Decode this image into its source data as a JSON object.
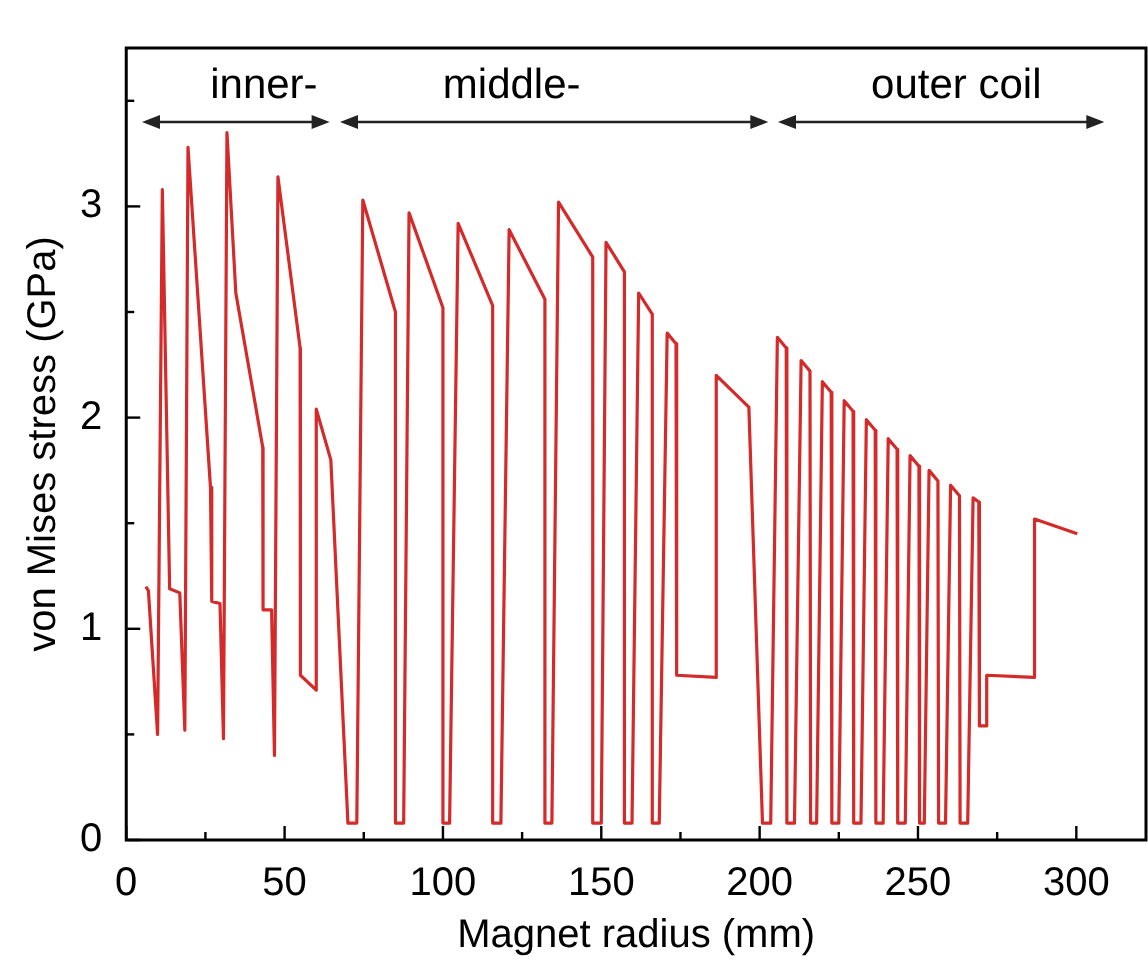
{
  "chart_data": {
    "type": "line",
    "xlabel": "Magnet radius (mm)",
    "ylabel": "von Mises stress (GPa)",
    "annotations": [
      "inner-",
      "middle-",
      "outer coil"
    ],
    "xlim": [
      0,
      322
    ],
    "ylim": [
      0,
      3.75
    ],
    "xticks": [
      0,
      {
        "value": 25,
        "label": null
      },
      50,
      {
        "value": 75,
        "label": null
      },
      100,
      {
        "value": 125,
        "label": null
      },
      150,
      {
        "value": 175,
        "label": null
      },
      200,
      {
        "value": 225,
        "label": null
      },
      250,
      {
        "value": 275,
        "label": null
      },
      300
    ],
    "yticks": [
      0,
      {
        "value": 0.5,
        "label": null
      },
      1,
      {
        "value": 1.5,
        "label": null
      },
      2,
      {
        "value": 2.5,
        "label": null
      },
      3,
      {
        "value": 3.5,
        "label": null
      }
    ],
    "grid": false,
    "legend": false,
    "marker": "none",
    "line_style": "solid",
    "series": [
      {
        "color": "#d42a2a",
        "x": [
          6.2,
          7.0,
          9.9,
          11.4,
          13.7,
          16.9,
          18.5,
          19.5,
          26.6,
          27.0,
          29.6,
          30.7,
          31.8,
          34.6,
          43.1,
          43.2,
          45.9,
          46.8,
          47.9,
          54.9,
          55.0,
          60.0,
          60.0,
          64.6,
          70.0,
          72.8,
          74.7,
          85.0,
          85.0,
          87.6,
          89.3,
          100.0,
          100.0,
          102.1,
          104.8,
          115.7,
          115.7,
          118.3,
          120.9,
          132.2,
          132.2,
          134.4,
          136.5,
          147.3,
          147.3,
          150.0,
          151.5,
          157.3,
          157.3,
          159.7,
          161.8,
          166.1,
          166.1,
          168.3,
          170.8,
          173.6,
          173.8,
          186.3,
          186.3,
          196.6,
          200.9,
          203.5,
          205.6,
          208.4,
          208.6,
          211.0,
          213.1,
          215.9,
          216.1,
          218.0,
          219.8,
          222.6,
          222.8,
          225.0,
          226.7,
          229.5,
          229.7,
          232.0,
          233.7,
          236.5,
          236.7,
          239.0,
          240.6,
          243.4,
          243.6,
          246.0,
          247.5,
          250.3,
          250.5,
          252.0,
          253.5,
          256.3,
          256.5,
          258.7,
          260.3,
          263.1,
          263.3,
          265.7,
          267.4,
          269.2,
          269.4,
          271.7,
          271.7,
          286.8,
          286.8,
          300.3
        ],
        "values": [
          1.2,
          1.18,
          0.5,
          3.08,
          1.19,
          1.17,
          0.52,
          3.28,
          1.67,
          1.13,
          1.12,
          0.48,
          3.35,
          2.59,
          1.86,
          1.09,
          1.09,
          0.4,
          3.14,
          2.33,
          0.78,
          0.71,
          2.04,
          1.8,
          0.08,
          0.08,
          3.03,
          2.5,
          0.08,
          0.08,
          2.97,
          2.52,
          0.08,
          0.08,
          2.92,
          2.53,
          0.08,
          0.08,
          2.89,
          2.56,
          0.08,
          0.08,
          3.02,
          2.76,
          0.08,
          0.08,
          2.83,
          2.69,
          0.08,
          0.08,
          2.59,
          2.49,
          0.08,
          0.08,
          2.4,
          2.35,
          0.78,
          0.77,
          2.2,
          2.05,
          0.08,
          0.08,
          2.38,
          2.33,
          0.08,
          0.08,
          2.27,
          2.22,
          0.08,
          0.08,
          2.17,
          2.12,
          0.08,
          0.08,
          2.08,
          2.03,
          0.08,
          0.08,
          1.99,
          1.94,
          0.08,
          0.08,
          1.9,
          1.85,
          0.08,
          0.08,
          1.82,
          1.77,
          0.08,
          0.08,
          1.75,
          1.7,
          0.08,
          0.08,
          1.68,
          1.63,
          0.08,
          0.08,
          1.62,
          1.6,
          0.54,
          0.54,
          0.78,
          0.77,
          1.52,
          1.45
        ]
      }
    ]
  }
}
